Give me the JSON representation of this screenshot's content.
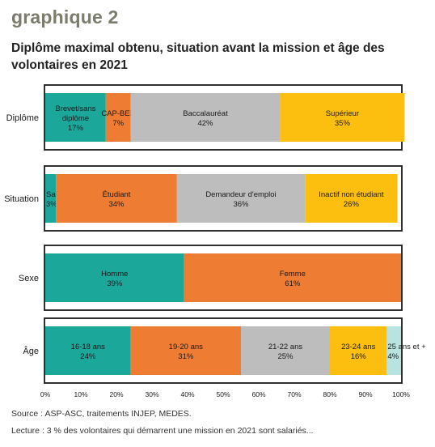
{
  "header": {
    "graph_label": "graphique 2",
    "title": "Diplôme maximal obtenu, situation avant la mission et âge des volontaires en 2021"
  },
  "footer": {
    "source": "Source : ASP-ASC, traitements INJEP, MEDES.",
    "reading_note": "Lecture : 3 % des volontaires qui démarrent une mission en 2021 sont salariés..."
  },
  "colors": {
    "teal": "#1ba79a",
    "orange": "#ee7d33",
    "gray": "#bdbdbd",
    "yellow": "#fdbf0f",
    "light_teal": "#b7e4e0",
    "frame": "#1a1a1a"
  },
  "chart_data": {
    "type": "bar",
    "orientation": "horizontal",
    "stacked": true,
    "xlim": [
      0,
      100
    ],
    "x_ticks": [
      "0%",
      "10%",
      "20%",
      "30%",
      "40%",
      "50%",
      "60%",
      "70%",
      "80%",
      "90%",
      "100%"
    ],
    "categories": [
      "Diplôme",
      "Situation",
      "Sexe",
      "Âge"
    ],
    "groups": [
      {
        "category": "Diplôme",
        "segments": [
          {
            "label": "Brevet/sans diplôme",
            "lines": [
              "Brevet/sans",
              "diplôme"
            ],
            "value": 17,
            "value_label": "17%",
            "color": "teal"
          },
          {
            "label": "CAP-BEP",
            "lines": [
              "CAP-BEP"
            ],
            "value": 7,
            "value_label": "7%",
            "color": "orange"
          },
          {
            "label": "Baccalauréat",
            "lines": [
              "Baccalauréat"
            ],
            "value": 42,
            "value_label": "42%",
            "color": "gray"
          },
          {
            "label": "Supérieur",
            "lines": [
              "Supérieur"
            ],
            "value": 35,
            "value_label": "35%",
            "color": "yellow"
          }
        ]
      },
      {
        "category": "Situation",
        "segments": [
          {
            "label": "Salarié",
            "lines": [
              "Salarié"
            ],
            "value": 3,
            "value_label": "3%",
            "color": "teal"
          },
          {
            "label": "Étudiant",
            "lines": [
              "Étudiant"
            ],
            "value": 34,
            "value_label": "34%",
            "color": "orange"
          },
          {
            "label": "Demandeur d'emploi",
            "lines": [
              "Demandeur d'emploi"
            ],
            "value": 36,
            "value_label": "36%",
            "color": "gray"
          },
          {
            "label": "Inactif non étudiant",
            "lines": [
              "Inactif non étudiant"
            ],
            "value": 26,
            "value_label": "26%",
            "color": "yellow"
          }
        ]
      },
      {
        "category": "Sexe",
        "segments": [
          {
            "label": "Homme",
            "lines": [
              "Homme"
            ],
            "value": 39,
            "value_label": "39%",
            "color": "teal"
          },
          {
            "label": "Femme",
            "lines": [
              "Femme"
            ],
            "value": 61,
            "value_label": "61%",
            "color": "orange"
          }
        ]
      },
      {
        "category": "Âge",
        "segments": [
          {
            "label": "16-18 ans",
            "lines": [
              "16-18 ans"
            ],
            "value": 24,
            "value_label": "24%",
            "color": "teal"
          },
          {
            "label": "19-20 ans",
            "lines": [
              "19-20 ans"
            ],
            "value": 31,
            "value_label": "31%",
            "color": "orange"
          },
          {
            "label": "21-22 ans",
            "lines": [
              "21-22 ans"
            ],
            "value": 25,
            "value_label": "25%",
            "color": "gray"
          },
          {
            "label": "23-24 ans",
            "lines": [
              "23-24 ans"
            ],
            "value": 16,
            "value_label": "16%",
            "color": "yellow"
          },
          {
            "label": "25 ans et +",
            "lines": [
              "25 ans et +"
            ],
            "value": 4,
            "value_label": "4%",
            "color": "light_teal"
          }
        ]
      }
    ]
  }
}
